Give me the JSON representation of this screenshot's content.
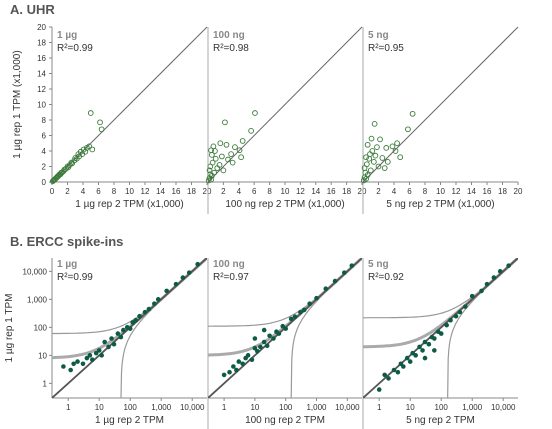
{
  "sections": [
    {
      "title": "A. UHR"
    },
    {
      "title": "B. ERCC spike-ins"
    }
  ],
  "colors": {
    "uhr_marker": "#3a7a3a",
    "ercc_marker": "#0d5a45",
    "identity_line": "#666666",
    "ercc_fit": "#555555",
    "ercc_bounds": "#999999"
  },
  "chart_data": [
    {
      "type": "scatter",
      "group": "A. UHR",
      "amount": "1 µg",
      "r2": "R²=0.99",
      "xlabel": "1 µg rep 2 TPM (x1,000)",
      "ylabel": "1 µg rep 1 TPM (x1,000)",
      "xlim": [
        0,
        20
      ],
      "ylim": [
        0,
        20
      ],
      "xticks": [
        "0",
        "2",
        "4",
        "6",
        "8",
        "10",
        "12",
        "14",
        "16",
        "18",
        "20"
      ],
      "yticks": [
        "0",
        "2",
        "4",
        "6",
        "8",
        "10",
        "12",
        "14",
        "16",
        "18",
        "20"
      ],
      "points": [
        [
          0.1,
          0.1
        ],
        [
          0.2,
          0.2
        ],
        [
          0.3,
          0.3
        ],
        [
          0.4,
          0.35
        ],
        [
          0.5,
          0.5
        ],
        [
          0.6,
          0.55
        ],
        [
          0.7,
          0.7
        ],
        [
          0.8,
          0.75
        ],
        [
          0.9,
          0.9
        ],
        [
          1.0,
          1.0
        ],
        [
          1.1,
          1.0
        ],
        [
          1.2,
          1.2
        ],
        [
          1.3,
          1.25
        ],
        [
          1.5,
          1.4
        ],
        [
          1.6,
          1.6
        ],
        [
          1.8,
          1.7
        ],
        [
          2.0,
          2.0
        ],
        [
          2.1,
          1.9
        ],
        [
          2.3,
          2.2
        ],
        [
          2.5,
          2.5
        ],
        [
          2.6,
          2.4
        ],
        [
          2.9,
          2.8
        ],
        [
          3.0,
          3.1
        ],
        [
          3.2,
          3.0
        ],
        [
          3.4,
          3.6
        ],
        [
          3.5,
          3.3
        ],
        [
          3.7,
          3.9
        ],
        [
          3.9,
          3.6
        ],
        [
          4.1,
          4.2
        ],
        [
          4.3,
          3.9
        ],
        [
          4.5,
          4.4
        ],
        [
          4.8,
          4.6
        ],
        [
          5.0,
          8.9
        ],
        [
          5.2,
          4.2
        ],
        [
          6.2,
          7.7
        ],
        [
          6.4,
          6.8
        ]
      ]
    },
    {
      "type": "scatter",
      "group": "A. UHR",
      "amount": "100 ng",
      "r2": "R²=0.98",
      "xlabel": "100 ng rep 2 TPM (x1,000)",
      "ylabel": "",
      "xlim": [
        0,
        20
      ],
      "ylim": [
        0,
        20
      ],
      "xticks": [
        "2",
        "4",
        "6",
        "8",
        "10",
        "12",
        "14",
        "16",
        "18",
        "20"
      ],
      "points": [
        [
          0.1,
          0.2
        ],
        [
          0.2,
          0.5
        ],
        [
          0.3,
          1.0
        ],
        [
          0.2,
          1.5
        ],
        [
          0.4,
          0.3
        ],
        [
          0.5,
          0.8
        ],
        [
          0.3,
          2.0
        ],
        [
          0.6,
          2.5
        ],
        [
          0.8,
          1.2
        ],
        [
          1.0,
          3.0
        ],
        [
          0.5,
          3.5
        ],
        [
          1.2,
          1.8
        ],
        [
          0.9,
          4.0
        ],
        [
          1.5,
          2.2
        ],
        [
          1.8,
          3.3
        ],
        [
          0.4,
          4.1
        ],
        [
          2.0,
          1.5
        ],
        [
          2.2,
          7.7
        ],
        [
          2.6,
          2.9
        ],
        [
          3.0,
          3.6
        ],
        [
          3.2,
          2.5
        ],
        [
          3.5,
          4.5
        ],
        [
          4.1,
          4.1
        ],
        [
          4.3,
          3.2
        ],
        [
          4.5,
          5.3
        ],
        [
          5.6,
          6.6
        ],
        [
          6.1,
          8.9
        ],
        [
          2.4,
          4.8
        ],
        [
          1.6,
          5.0
        ],
        [
          0.7,
          4.6
        ]
      ]
    },
    {
      "type": "scatter",
      "group": "A. UHR",
      "amount": "5 ng",
      "r2": "R²=0.95",
      "xlabel": "5 ng rep 2 TPM (x1,000)",
      "ylabel": "",
      "xlim": [
        0,
        20
      ],
      "ylim": [
        0,
        20
      ],
      "xticks": [
        "2",
        "4",
        "6",
        "8",
        "10",
        "12",
        "14",
        "16",
        "18",
        "20"
      ],
      "points": [
        [
          0.1,
          0.2
        ],
        [
          0.2,
          0.6
        ],
        [
          0.3,
          1.2
        ],
        [
          0.2,
          1.8
        ],
        [
          0.4,
          0.4
        ],
        [
          0.5,
          2.3
        ],
        [
          0.6,
          0.9
        ],
        [
          0.8,
          3.0
        ],
        [
          1.0,
          1.5
        ],
        [
          1.2,
          4.0
        ],
        [
          0.6,
          4.8
        ],
        [
          1.4,
          2.6
        ],
        [
          1.5,
          7.5
        ],
        [
          1.6,
          3.4
        ],
        [
          1.8,
          4.5
        ],
        [
          2.0,
          2.0
        ],
        [
          2.2,
          5.5
        ],
        [
          2.5,
          3.1
        ],
        [
          2.8,
          1.8
        ],
        [
          3.0,
          4.4
        ],
        [
          3.2,
          2.6
        ],
        [
          3.8,
          4.6
        ],
        [
          4.2,
          4.0
        ],
        [
          4.4,
          5.0
        ],
        [
          4.8,
          3.2
        ],
        [
          5.8,
          6.8
        ],
        [
          6.4,
          8.8
        ],
        [
          1.1,
          5.6
        ],
        [
          0.9,
          3.6
        ],
        [
          0.4,
          3.2
        ]
      ]
    },
    {
      "type": "scatter",
      "group": "B. ERCC spike-ins",
      "amount": "1 µg",
      "r2": "R²=0.99",
      "xlabel": "1 µg rep 2 TPM",
      "ylabel": "1 µg rep 1 TPM",
      "log": true,
      "xlim": [
        0.3,
        30000
      ],
      "ylim": [
        0.3,
        30000
      ],
      "xticks": [
        "1",
        "10",
        "100",
        "1,000",
        "10,000"
      ],
      "yticks": [
        "1",
        "10",
        "100",
        "1,000",
        "10,000"
      ],
      "points": [
        [
          0.7,
          4
        ],
        [
          1.2,
          3
        ],
        [
          1.5,
          5
        ],
        [
          2,
          6
        ],
        [
          3,
          5
        ],
        [
          4,
          8
        ],
        [
          5,
          10
        ],
        [
          6,
          7
        ],
        [
          8,
          12
        ],
        [
          10,
          15
        ],
        [
          12,
          10
        ],
        [
          15,
          30
        ],
        [
          20,
          20
        ],
        [
          25,
          40
        ],
        [
          30,
          25
        ],
        [
          40,
          60
        ],
        [
          50,
          45
        ],
        [
          60,
          80
        ],
        [
          80,
          100
        ],
        [
          100,
          90
        ],
        [
          120,
          150
        ],
        [
          150,
          180
        ],
        [
          200,
          250
        ],
        [
          300,
          350
        ],
        [
          400,
          450
        ],
        [
          600,
          700
        ],
        [
          800,
          1000
        ],
        [
          1500,
          2000
        ],
        [
          3000,
          3500
        ],
        [
          5000,
          6000
        ],
        [
          8000,
          9000
        ],
        [
          15000,
          18000
        ]
      ]
    },
    {
      "type": "scatter",
      "group": "B. ERCC spike-ins",
      "amount": "100 ng",
      "r2": "R²=0.97",
      "xlabel": "100 ng rep 2 TPM",
      "ylabel": "",
      "log": true,
      "xlim": [
        0.3,
        30000
      ],
      "ylim": [
        0.3,
        30000
      ],
      "xticks": [
        "1",
        "10",
        "100",
        "1,000",
        "10,000"
      ],
      "points": [
        [
          1,
          2
        ],
        [
          1.5,
          2.5
        ],
        [
          2,
          4
        ],
        [
          2.5,
          3
        ],
        [
          3,
          6
        ],
        [
          4,
          5
        ],
        [
          5,
          8
        ],
        [
          6,
          10
        ],
        [
          8,
          7
        ],
        [
          10,
          18
        ],
        [
          12,
          14
        ],
        [
          15,
          20
        ],
        [
          20,
          30
        ],
        [
          25,
          22
        ],
        [
          30,
          50
        ],
        [
          40,
          40
        ],
        [
          50,
          70
        ],
        [
          60,
          60
        ],
        [
          80,
          110
        ],
        [
          100,
          90
        ],
        [
          150,
          200
        ],
        [
          200,
          240
        ],
        [
          300,
          350
        ],
        [
          400,
          420
        ],
        [
          600,
          700
        ],
        [
          1000,
          1100
        ],
        [
          2000,
          2400
        ],
        [
          4000,
          4500
        ],
        [
          8000,
          9000
        ],
        [
          14000,
          16000
        ],
        [
          20,
          80
        ],
        [
          10,
          40
        ]
      ]
    },
    {
      "type": "scatter",
      "group": "B. ERCC spike-ins",
      "amount": "5 ng",
      "r2": "R²=0.92",
      "xlabel": "5 ng rep 2 TPM",
      "ylabel": "",
      "log": true,
      "xlim": [
        0.3,
        30000
      ],
      "ylim": [
        0.3,
        30000
      ],
      "xticks": [
        "1",
        "10",
        "100",
        "1,000",
        "10,000"
      ],
      "points": [
        [
          1,
          0.6
        ],
        [
          1.5,
          2
        ],
        [
          2,
          1.5
        ],
        [
          3,
          3
        ],
        [
          4,
          2.5
        ],
        [
          5,
          5
        ],
        [
          6,
          4
        ],
        [
          8,
          8
        ],
        [
          10,
          6
        ],
        [
          12,
          12
        ],
        [
          15,
          10
        ],
        [
          20,
          20
        ],
        [
          25,
          15
        ],
        [
          30,
          30
        ],
        [
          40,
          25
        ],
        [
          50,
          45
        ],
        [
          60,
          40
        ],
        [
          80,
          70
        ],
        [
          100,
          60
        ],
        [
          150,
          120
        ],
        [
          200,
          180
        ],
        [
          300,
          250
        ],
        [
          400,
          350
        ],
        [
          600,
          550
        ],
        [
          1000,
          1300
        ],
        [
          2000,
          2000
        ],
        [
          3000,
          3500
        ],
        [
          5000,
          6000
        ],
        [
          8000,
          10000
        ],
        [
          15000,
          16000
        ],
        [
          30,
          8
        ],
        [
          60,
          15
        ]
      ]
    }
  ]
}
